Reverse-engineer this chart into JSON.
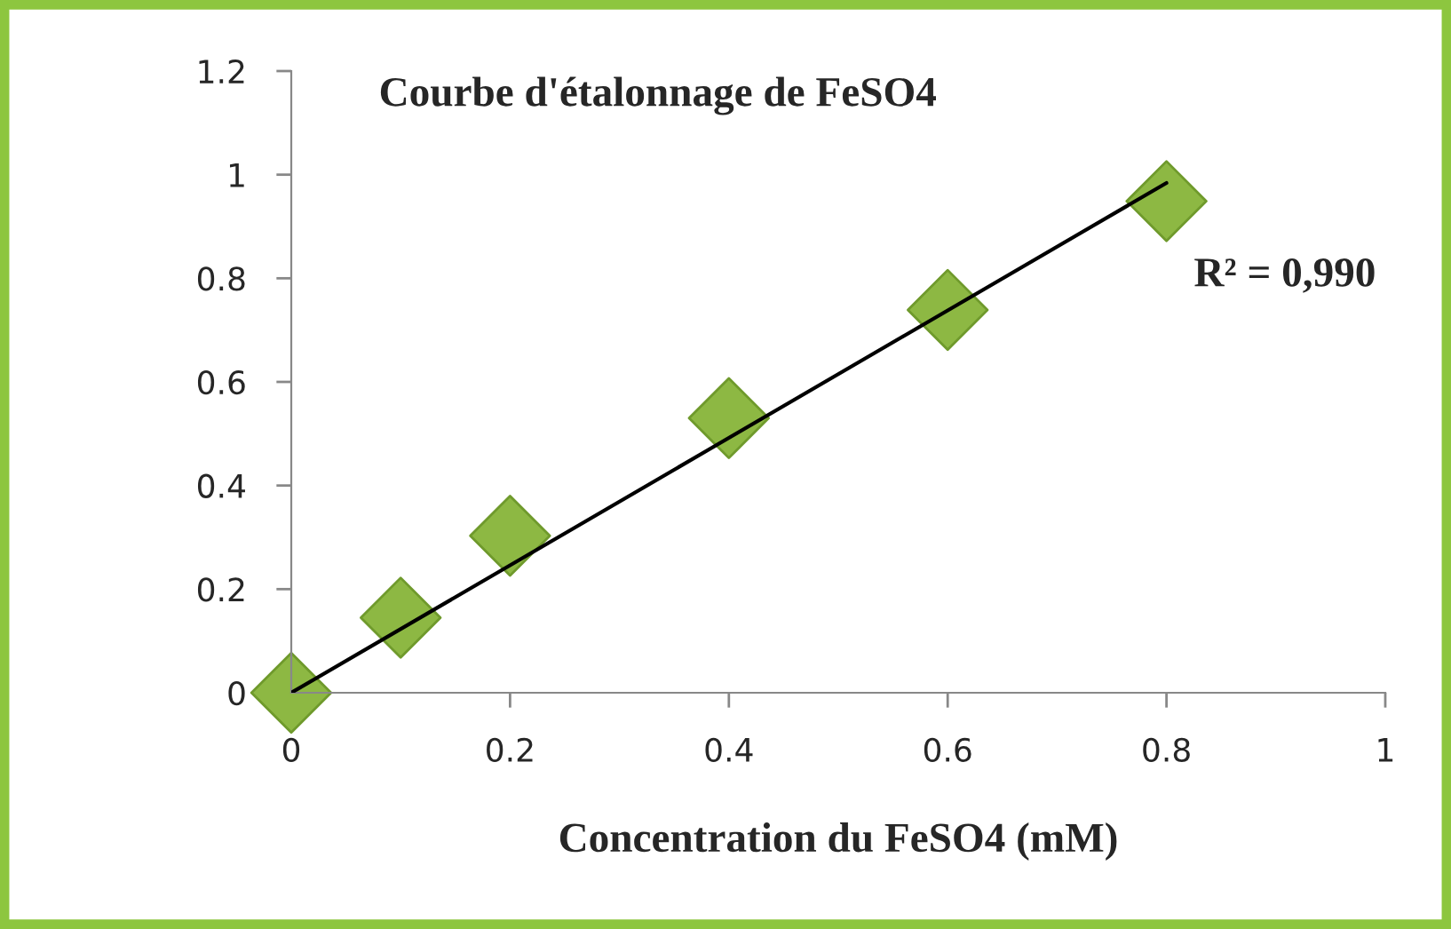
{
  "chart_data": {
    "type": "scatter",
    "title": "Courbe d'étalonnage de FeSO4",
    "xlabel": "Concentration du FeSO4 (mM)",
    "x": [
      0,
      0.1,
      0.2,
      0.4,
      0.6,
      0.8
    ],
    "series": [
      {
        "color": "#8db843",
        "marker": "diamond",
        "values": [
          0,
          0.145,
          0.303,
          0.53,
          0.739,
          0.949
        ]
      },
      {
        "type": "line",
        "color": "#000000",
        "line_style": "solid",
        "marker": "none",
        "x": [
          0,
          0.8
        ],
        "values": [
          0,
          0.984
        ]
      }
    ],
    "annotations": [
      "R² = 0,990"
    ],
    "xlim": [
      0,
      1
    ],
    "xticks": [
      0,
      0.2,
      0.4,
      0.6,
      0.8,
      1
    ],
    "ylim": [
      0,
      1.2
    ],
    "yticks": [
      0,
      0.2,
      0.4,
      0.6,
      0.8,
      1,
      1.2
    ],
    "grid": false,
    "legend": false
  }
}
